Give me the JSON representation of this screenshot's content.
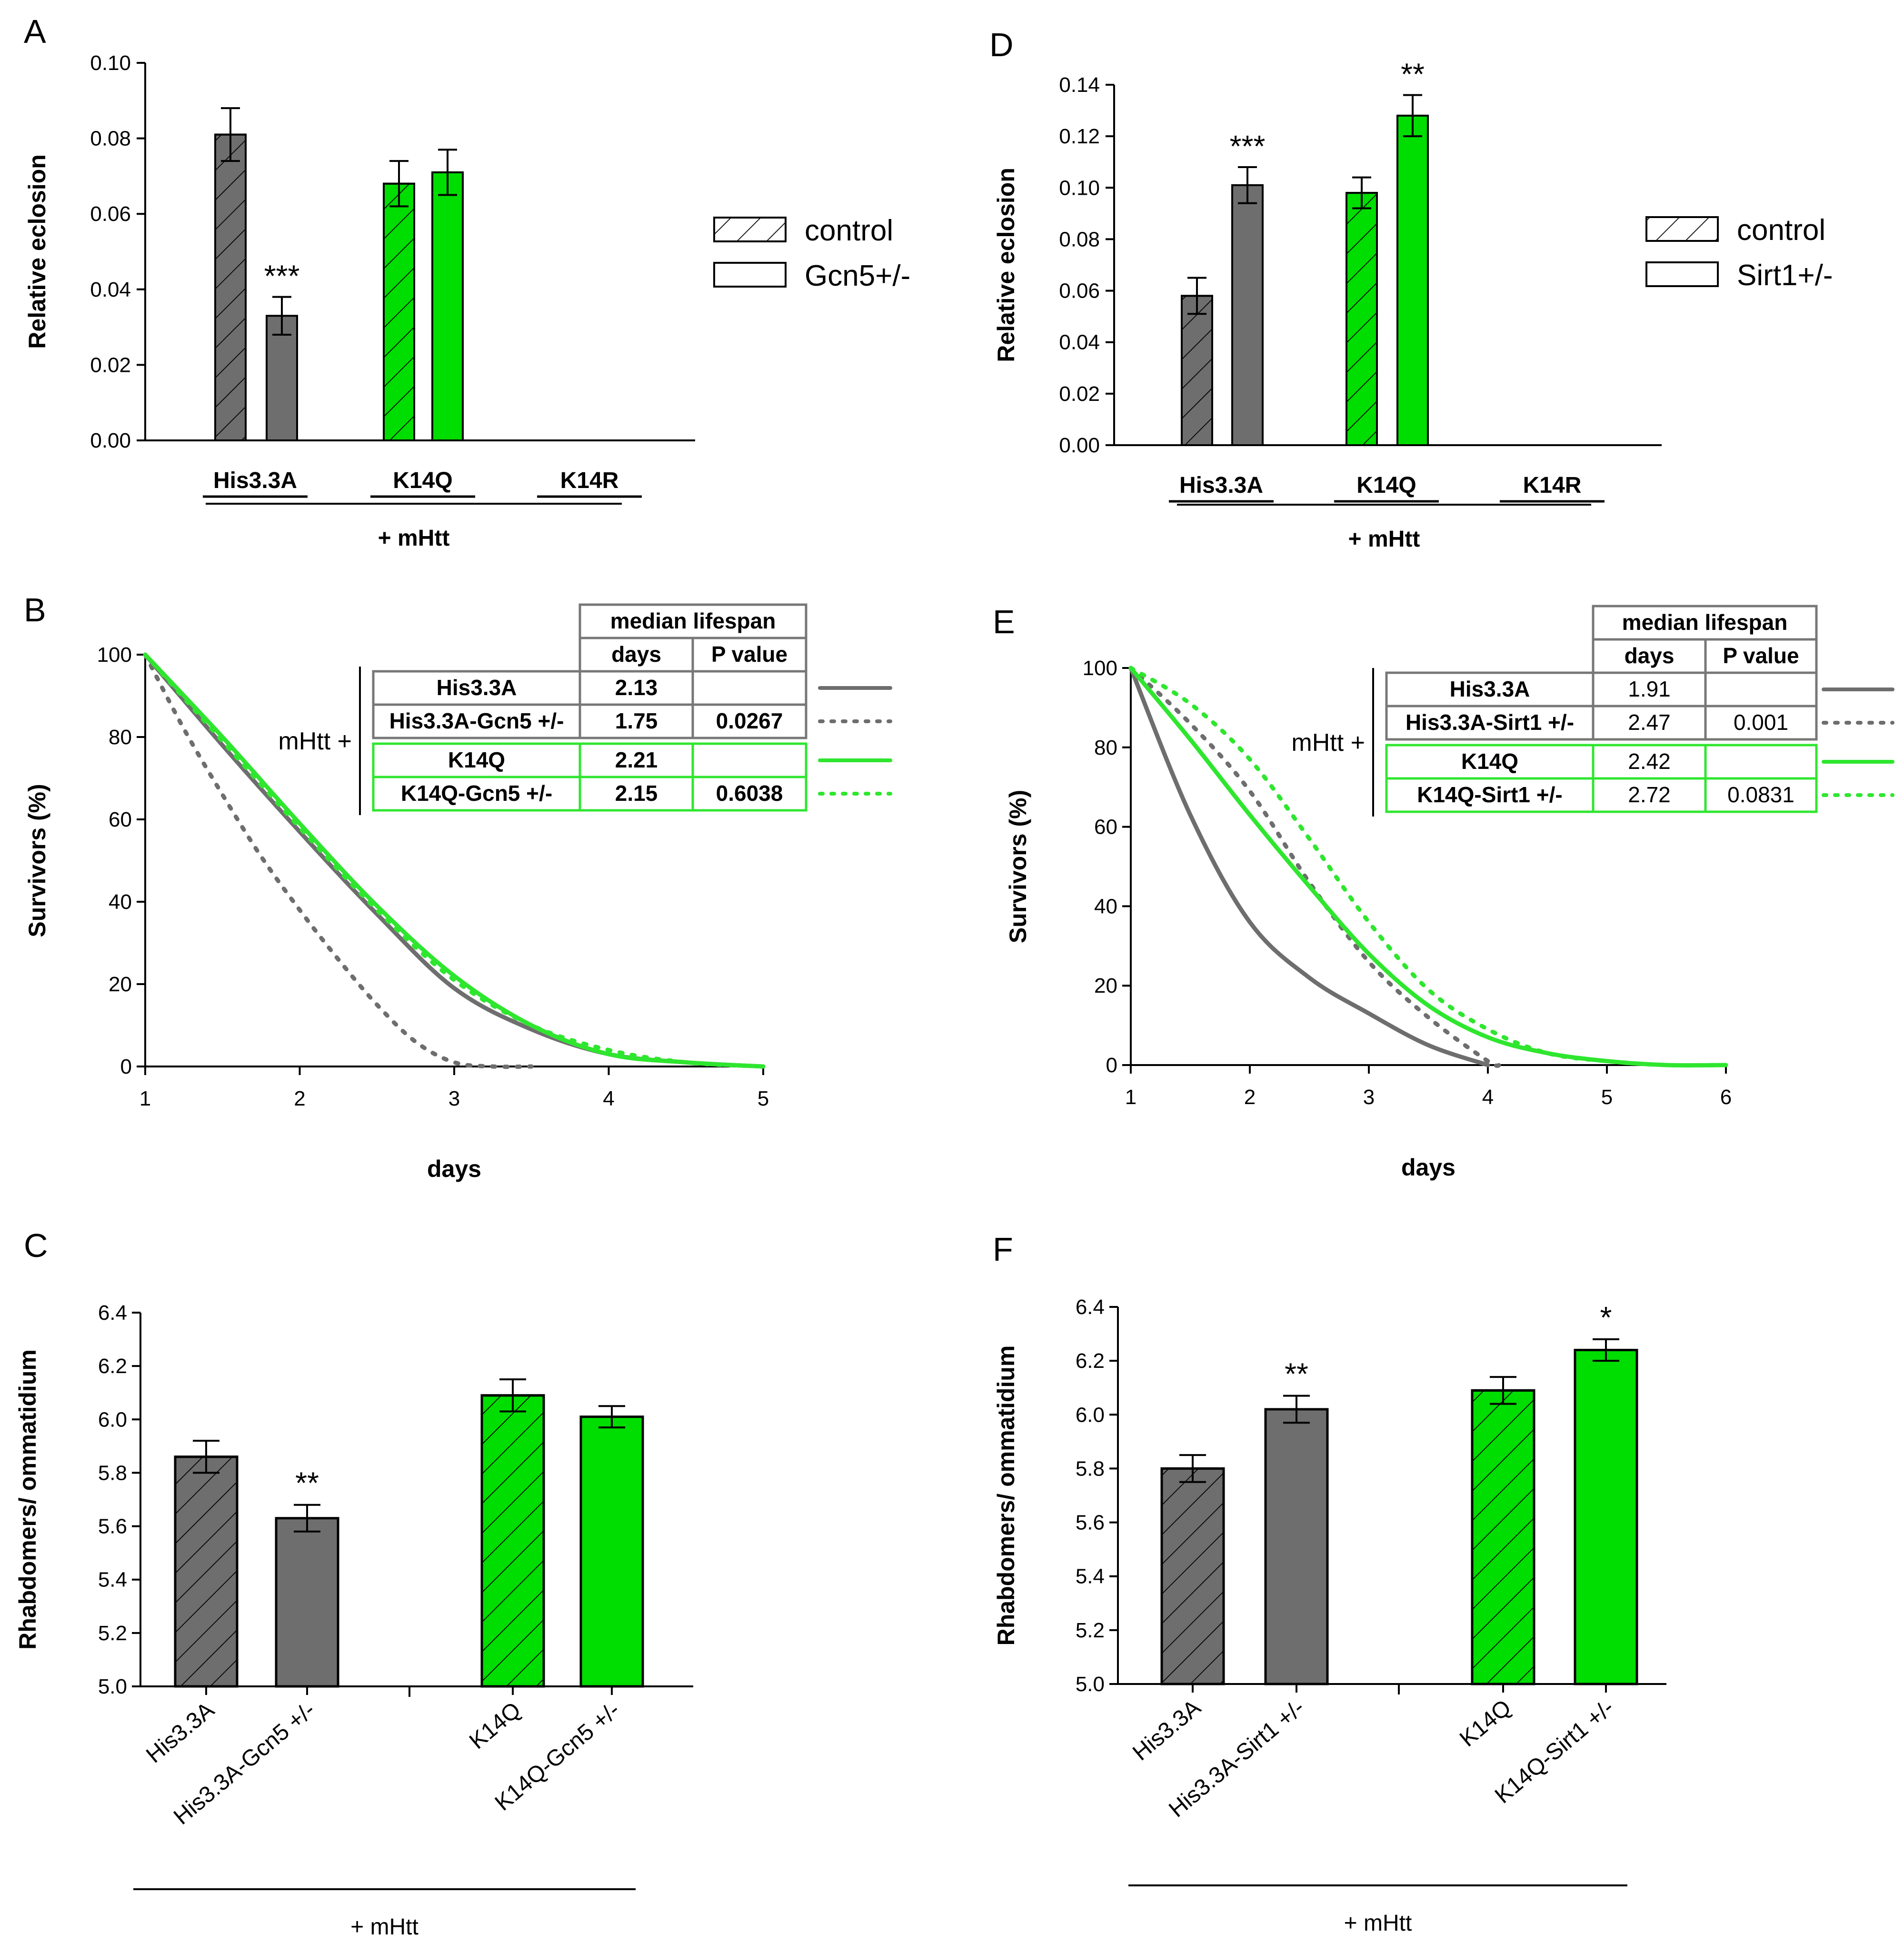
{
  "colors": {
    "gray": "#6e6e6e",
    "green": "#00dd00",
    "grayLine": "#6e6e6e",
    "greenLine": "#2fe62f"
  },
  "chart_data": [
    {
      "panel": "A",
      "type": "bar",
      "ylabel": "Relative eclosion",
      "ylim": [
        0,
        0.1
      ],
      "yticks": [
        "0.00",
        "0.02",
        "0.04",
        "0.06",
        "0.08",
        "0.10"
      ],
      "categories": [
        "His3.3A",
        "K14Q",
        "K14R"
      ],
      "group_label": "+ mHtt",
      "legend": [
        "control",
        "Gcn5+/-"
      ],
      "bars": [
        {
          "group": "His3.3A",
          "series": "control",
          "value": 0.081,
          "err": 0.007,
          "color": "gray",
          "hatched": true,
          "sig": ""
        },
        {
          "group": "His3.3A",
          "series": "Gcn5+/-",
          "value": 0.033,
          "err": 0.005,
          "color": "gray",
          "hatched": false,
          "sig": "***"
        },
        {
          "group": "K14Q",
          "series": "control",
          "value": 0.068,
          "err": 0.006,
          "color": "green",
          "hatched": true,
          "sig": ""
        },
        {
          "group": "K14Q",
          "series": "Gcn5+/-",
          "value": 0.071,
          "err": 0.006,
          "color": "green",
          "hatched": false,
          "sig": ""
        }
      ]
    },
    {
      "panel": "D",
      "type": "bar",
      "ylabel": "Relative eclosion",
      "ylim": [
        0,
        0.14
      ],
      "yticks": [
        "0.00",
        "0.02",
        "0.04",
        "0.06",
        "0.08",
        "0.10",
        "0.12",
        "0.14"
      ],
      "categories": [
        "His3.3A",
        "K14Q",
        "K14R"
      ],
      "group_label": "+ mHtt",
      "legend": [
        "control",
        "Sirt1+/-"
      ],
      "bars": [
        {
          "group": "His3.3A",
          "series": "control",
          "value": 0.058,
          "err": 0.007,
          "color": "gray",
          "hatched": true,
          "sig": ""
        },
        {
          "group": "His3.3A",
          "series": "Sirt1+/-",
          "value": 0.101,
          "err": 0.007,
          "color": "gray",
          "hatched": false,
          "sig": "***"
        },
        {
          "group": "K14Q",
          "series": "control",
          "value": 0.098,
          "err": 0.006,
          "color": "green",
          "hatched": true,
          "sig": ""
        },
        {
          "group": "K14Q",
          "series": "Sirt1+/-",
          "value": 0.128,
          "err": 0.008,
          "color": "green",
          "hatched": false,
          "sig": "**"
        }
      ]
    },
    {
      "panel": "B",
      "type": "line",
      "xlabel": "days",
      "ylabel": "Survivors (%)",
      "xlim": [
        1,
        5
      ],
      "ylim": [
        0,
        100
      ],
      "xticks": [
        "1",
        "2",
        "3",
        "4",
        "5"
      ],
      "yticks": [
        "0",
        "20",
        "40",
        "60",
        "80",
        "100"
      ],
      "mhtt_label": "mHtt +",
      "table": {
        "title": "median lifespan",
        "cols": [
          "days",
          "P value"
        ],
        "rows": [
          [
            "His3.3A",
            "2.13",
            ""
          ],
          [
            "His3.3A-Gcn5 +/-",
            "1.75",
            "0.0267"
          ],
          [
            "K14Q",
            "2.21",
            ""
          ],
          [
            "K14Q-Gcn5 +/-",
            "2.15",
            "0.6038"
          ]
        ]
      },
      "series": [
        {
          "name": "His3.3A",
          "color": "grayLine",
          "dashed": false,
          "x": [
            1,
            1.5,
            2,
            2.5,
            3,
            3.5,
            4,
            4.5,
            5
          ],
          "y": [
            100,
            78,
            57,
            37,
            19,
            9,
            3,
            1,
            0
          ]
        },
        {
          "name": "His3.3A-Gcn5 +/-",
          "color": "grayLine",
          "dashed": true,
          "x": [
            1,
            1.25,
            1.5,
            1.75,
            2,
            2.25,
            2.5,
            2.75,
            3,
            3.25,
            3.5
          ],
          "y": [
            100,
            82,
            66,
            51,
            38,
            26,
            15,
            6,
            1,
            0,
            0
          ]
        },
        {
          "name": "K14Q",
          "color": "greenLine",
          "dashed": false,
          "x": [
            1,
            1.5,
            2,
            2.5,
            3,
            3.5,
            4,
            4.5,
            5
          ],
          "y": [
            100,
            80,
            59,
            39,
            22,
            10,
            3,
            1,
            0
          ]
        },
        {
          "name": "K14Q-Gcn5 +/-",
          "color": "greenLine",
          "dashed": true,
          "x": [
            1,
            1.5,
            2,
            2.5,
            3,
            3.5,
            4,
            4.5,
            5
          ],
          "y": [
            100,
            79,
            58,
            38,
            21,
            10,
            4,
            1,
            0
          ]
        }
      ]
    },
    {
      "panel": "E",
      "type": "line",
      "xlabel": "days",
      "ylabel": "Survivors (%)",
      "xlim": [
        1,
        6
      ],
      "ylim": [
        0,
        100
      ],
      "xticks": [
        "1",
        "2",
        "3",
        "4",
        "5",
        "6"
      ],
      "yticks": [
        "0",
        "20",
        "40",
        "60",
        "80",
        "100"
      ],
      "mhtt_label": "mHtt +",
      "table": {
        "title": "median lifespan",
        "cols": [
          "days",
          "P value"
        ],
        "rows": [
          [
            "His3.3A",
            "1.91",
            ""
          ],
          [
            "His3.3A-Sirt1 +/-",
            "2.47",
            "0.001"
          ],
          [
            "K14Q",
            "2.42",
            ""
          ],
          [
            "K14Q-Sirt1 +/-",
            "2.72",
            "0.0831"
          ]
        ]
      },
      "series": [
        {
          "name": "His3.3A",
          "color": "grayLine",
          "dashed": false,
          "x": [
            1,
            1.5,
            2,
            2.5,
            3,
            3.5,
            4
          ],
          "y": [
            100,
            63,
            36,
            22,
            13,
            5,
            0
          ]
        },
        {
          "name": "His3.3A-Sirt1 +/-",
          "color": "grayLine",
          "dashed": true,
          "x": [
            1,
            1.5,
            2,
            2.5,
            3,
            3.5,
            4,
            4.1
          ],
          "y": [
            100,
            86,
            69,
            46,
            26,
            12,
            1,
            0
          ]
        },
        {
          "name": "K14Q",
          "color": "greenLine",
          "dashed": false,
          "x": [
            1,
            1.5,
            2,
            2.5,
            3,
            3.5,
            4,
            4.5,
            5,
            5.5,
            6
          ],
          "y": [
            100,
            82,
            63,
            45,
            28,
            15,
            7,
            3,
            1,
            0,
            0
          ]
        },
        {
          "name": "K14Q-Sirt1 +/-",
          "color": "greenLine",
          "dashed": true,
          "x": [
            1,
            1.5,
            2,
            2.5,
            3,
            3.5,
            4,
            4.5,
            5,
            5.5,
            6
          ],
          "y": [
            100,
            91,
            77,
            57,
            36,
            19,
            9,
            3,
            1,
            0,
            0
          ]
        }
      ]
    },
    {
      "panel": "C",
      "type": "bar",
      "ylabel": "Rhabdomers/ ommatidium",
      "ylim": [
        5.0,
        6.4
      ],
      "yticks": [
        "5.0",
        "5.2",
        "5.4",
        "5.6",
        "5.8",
        "6.0",
        "6.2",
        "6.4"
      ],
      "group_label": "+ mHtt",
      "bars": [
        {
          "label": "His3.3A",
          "value": 5.86,
          "err": 0.06,
          "color": "gray",
          "hatched": true,
          "sig": ""
        },
        {
          "label": "His3.3A-Gcn5 +/-",
          "value": 5.63,
          "err": 0.05,
          "color": "gray",
          "hatched": false,
          "sig": "**"
        },
        {
          "label": "K14Q",
          "value": 6.09,
          "err": 0.06,
          "color": "green",
          "hatched": true,
          "sig": ""
        },
        {
          "label": "K14Q-Gcn5 +/-",
          "value": 6.01,
          "err": 0.04,
          "color": "green",
          "hatched": false,
          "sig": ""
        }
      ]
    },
    {
      "panel": "F",
      "type": "bar",
      "ylabel": "Rhabdomers/ ommatidium",
      "ylim": [
        5.0,
        6.4
      ],
      "yticks": [
        "5.0",
        "5.2",
        "5.4",
        "5.6",
        "5.8",
        "6.0",
        "6.2",
        "6.4"
      ],
      "group_label": "+ mHtt",
      "bars": [
        {
          "label": "His3.3A",
          "value": 5.8,
          "err": 0.05,
          "color": "gray",
          "hatched": true,
          "sig": ""
        },
        {
          "label": "His3.3A-Sirt1 +/-",
          "value": 6.02,
          "err": 0.05,
          "color": "gray",
          "hatched": false,
          "sig": "**"
        },
        {
          "label": "K14Q",
          "value": 6.09,
          "err": 0.05,
          "color": "green",
          "hatched": true,
          "sig": ""
        },
        {
          "label": "K14Q-Sirt1 +/-",
          "value": 6.24,
          "err": 0.04,
          "color": "green",
          "hatched": false,
          "sig": "*"
        }
      ]
    }
  ]
}
